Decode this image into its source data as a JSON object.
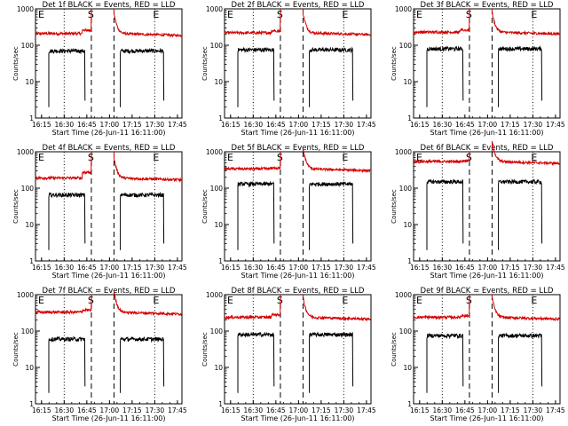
{
  "chart_data": [
    {
      "type": "line",
      "title": "Det 1f BLACK = Events, RED = LLD",
      "xlabel": "Start Time (26-Jun-11 16:11:00)",
      "ylabel": "Counts/sec",
      "xticks": [
        "16:15",
        "16:30",
        "16:45",
        "17:00",
        "17:15",
        "17:30",
        "17:45"
      ],
      "yticks": [
        "1",
        "10",
        "100",
        "1000"
      ],
      "ylim": [
        1,
        1000
      ],
      "yscale": "log",
      "markers": [
        "E",
        "S",
        "E"
      ],
      "series": [
        {
          "name": "LLD",
          "color": "#d40000",
          "base": 210,
          "bump_left": 260,
          "gap": [
            16.8,
            17.05
          ],
          "segments": [
            [
              16.1,
              16.8
            ],
            [
              17.05,
              17.78
            ]
          ]
        },
        {
          "name": "Events",
          "color": "#000000",
          "base": 70,
          "segments": [
            [
              16.33,
              16.73
            ],
            [
              17.12,
              17.6
            ]
          ],
          "drop_to": 2
        }
      ]
    },
    {
      "type": "line",
      "title": "Det 2f BLACK = Events, RED = LLD",
      "xlabel": "Start Time (26-Jun-11 16:11:00)",
      "ylabel": "Counts/sec",
      "xticks": [
        "16:15",
        "16:30",
        "16:45",
        "17:00",
        "17:15",
        "17:30",
        "17:45"
      ],
      "yticks": [
        "1",
        "10",
        "100",
        "1000"
      ],
      "ylim": [
        1,
        1000
      ],
      "yscale": "log",
      "markers": [
        "E",
        "S",
        "E"
      ],
      "series": [
        {
          "name": "LLD",
          "color": "#d40000",
          "base": 220,
          "bump_left": 250,
          "gap": [
            16.8,
            17.05
          ],
          "segments": [
            [
              16.1,
              16.8
            ],
            [
              17.05,
              17.78
            ]
          ]
        },
        {
          "name": "Events",
          "color": "#000000",
          "base": 75,
          "segments": [
            [
              16.33,
              16.73
            ],
            [
              17.12,
              17.6
            ]
          ],
          "drop_to": 2
        }
      ]
    },
    {
      "type": "line",
      "title": "Det 3f BLACK = Events, RED = LLD",
      "xlabel": "Start Time (26-Jun-11 16:11:00)",
      "ylabel": "Counts/sec",
      "xticks": [
        "16:15",
        "16:30",
        "16:45",
        "17:00",
        "17:15",
        "17:30",
        "17:45"
      ],
      "yticks": [
        "1",
        "10",
        "100",
        "1000"
      ],
      "ylim": [
        1,
        1000
      ],
      "yscale": "log",
      "markers": [
        "E",
        "S",
        "E"
      ],
      "series": [
        {
          "name": "LLD",
          "color": "#d40000",
          "base": 230,
          "bump_left": 260,
          "gap": [
            16.8,
            17.05
          ],
          "segments": [
            [
              16.1,
              16.8
            ],
            [
              17.05,
              17.78
            ]
          ]
        },
        {
          "name": "Events",
          "color": "#000000",
          "base": 80,
          "segments": [
            [
              16.33,
              16.73
            ],
            [
              17.12,
              17.6
            ]
          ],
          "drop_to": 2
        }
      ]
    },
    {
      "type": "line",
      "title": "Det 4f BLACK = Events, RED = LLD",
      "xlabel": "Start Time (26-Jun-11 16:11:00)",
      "ylabel": "Counts/sec",
      "xticks": [
        "16:15",
        "16:30",
        "16:45",
        "17:00",
        "17:15",
        "17:30",
        "17:45"
      ],
      "yticks": [
        "1",
        "10",
        "100",
        "1000"
      ],
      "ylim": [
        1,
        1000
      ],
      "yscale": "log",
      "markers": [
        "E",
        "S",
        "E"
      ],
      "series": [
        {
          "name": "LLD",
          "color": "#d40000",
          "base": 190,
          "bump_left": 270,
          "gap": [
            16.8,
            17.05
          ],
          "segments": [
            [
              16.1,
              16.8
            ],
            [
              17.05,
              17.78
            ]
          ]
        },
        {
          "name": "Events",
          "color": "#000000",
          "base": 65,
          "segments": [
            [
              16.33,
              16.73
            ],
            [
              17.12,
              17.6
            ]
          ],
          "drop_to": 2
        }
      ]
    },
    {
      "type": "line",
      "title": "Det 5f BLACK = Events, RED = LLD",
      "xlabel": "Start Time (26-Jun-11 16:11:00)",
      "ylabel": "Counts/sec",
      "xticks": [
        "16:15",
        "16:30",
        "16:45",
        "17:00",
        "17:15",
        "17:30",
        "17:45"
      ],
      "yticks": [
        "1",
        "10",
        "100",
        "1000"
      ],
      "ylim": [
        1,
        1000
      ],
      "yscale": "log",
      "markers": [
        "E",
        "S",
        "E"
      ],
      "series": [
        {
          "name": "LLD",
          "color": "#d40000",
          "base": 340,
          "bump_left": 350,
          "gap": [
            16.8,
            17.05
          ],
          "segments": [
            [
              16.1,
              16.8
            ],
            [
              17.05,
              17.78
            ]
          ]
        },
        {
          "name": "Events",
          "color": "#000000",
          "base": 130,
          "segments": [
            [
              16.33,
              16.73
            ],
            [
              17.12,
              17.6
            ]
          ],
          "drop_to": 2
        }
      ]
    },
    {
      "type": "line",
      "title": "Det 6f BLACK = Events, RED = LLD",
      "xlabel": "Start Time (26-Jun-11 16:11:00)",
      "ylabel": "Counts/sec",
      "xticks": [
        "16:15",
        "16:30",
        "16:45",
        "17:00",
        "17:15",
        "17:30",
        "17:45"
      ],
      "yticks": [
        "1",
        "10",
        "100",
        "1000"
      ],
      "ylim": [
        1,
        1000
      ],
      "yscale": "log",
      "markers": [
        "E",
        "S",
        "E"
      ],
      "series": [
        {
          "name": "LLD",
          "color": "#d40000",
          "base": 540,
          "bump_left": 560,
          "gap": [
            16.8,
            17.05
          ],
          "segments": [
            [
              16.1,
              16.8
            ],
            [
              17.05,
              17.78
            ]
          ]
        },
        {
          "name": "Events",
          "color": "#000000",
          "base": 150,
          "segments": [
            [
              16.33,
              16.73
            ],
            [
              17.12,
              17.6
            ]
          ],
          "drop_to": 2
        }
      ]
    },
    {
      "type": "line",
      "title": "Det 7f BLACK = Events, RED = LLD",
      "xlabel": "Start Time (26-Jun-11 16:11:00)",
      "ylabel": "Counts/sec",
      "xticks": [
        "16:15",
        "16:30",
        "16:45",
        "17:00",
        "17:15",
        "17:30",
        "17:45"
      ],
      "yticks": [
        "1",
        "10",
        "100",
        "1000"
      ],
      "ylim": [
        1,
        1000
      ],
      "yscale": "log",
      "markers": [
        "E",
        "S",
        "E"
      ],
      "series": [
        {
          "name": "LLD",
          "color": "#d40000",
          "base": 330,
          "bump_left": 380,
          "gap": [
            16.8,
            17.05
          ],
          "segments": [
            [
              16.1,
              16.8
            ],
            [
              17.05,
              17.78
            ]
          ]
        },
        {
          "name": "Events",
          "color": "#000000",
          "base": 60,
          "segments": [
            [
              16.33,
              16.73
            ],
            [
              17.12,
              17.6
            ]
          ],
          "drop_to": 2
        }
      ]
    },
    {
      "type": "line",
      "title": "Det 8f BLACK = Events, RED = LLD",
      "xlabel": "Start Time (26-Jun-11 16:11:00)",
      "ylabel": "Counts/sec",
      "xticks": [
        "16:15",
        "16:30",
        "16:45",
        "17:00",
        "17:15",
        "17:30",
        "17:45"
      ],
      "yticks": [
        "1",
        "10",
        "100",
        "1000"
      ],
      "ylim": [
        1,
        1000
      ],
      "yscale": "log",
      "markers": [
        "E",
        "S",
        "E"
      ],
      "series": [
        {
          "name": "LLD",
          "color": "#d40000",
          "base": 240,
          "bump_left": 280,
          "gap": [
            16.8,
            17.05
          ],
          "segments": [
            [
              16.1,
              16.8
            ],
            [
              17.05,
              17.78
            ]
          ]
        },
        {
          "name": "Events",
          "color": "#000000",
          "base": 80,
          "segments": [
            [
              16.33,
              16.73
            ],
            [
              17.12,
              17.6
            ]
          ],
          "drop_to": 2
        }
      ]
    },
    {
      "type": "line",
      "title": "Det 9f BLACK = Events, RED = LLD",
      "xlabel": "Start Time (26-Jun-11 16:11:00)",
      "ylabel": "Counts/sec",
      "xticks": [
        "16:15",
        "16:30",
        "16:45",
        "17:00",
        "17:15",
        "17:30",
        "17:45"
      ],
      "yticks": [
        "1",
        "10",
        "100",
        "1000"
      ],
      "ylim": [
        1,
        1000
      ],
      "yscale": "log",
      "markers": [
        "E",
        "S",
        "E"
      ],
      "series": [
        {
          "name": "LLD",
          "color": "#d40000",
          "base": 240,
          "bump_left": 260,
          "gap": [
            16.8,
            17.05
          ],
          "segments": [
            [
              16.1,
              16.8
            ],
            [
              17.05,
              17.78
            ]
          ]
        },
        {
          "name": "Events",
          "color": "#000000",
          "base": 75,
          "segments": [
            [
              16.33,
              16.73
            ],
            [
              17.12,
              17.6
            ]
          ],
          "drop_to": 2
        }
      ]
    }
  ]
}
